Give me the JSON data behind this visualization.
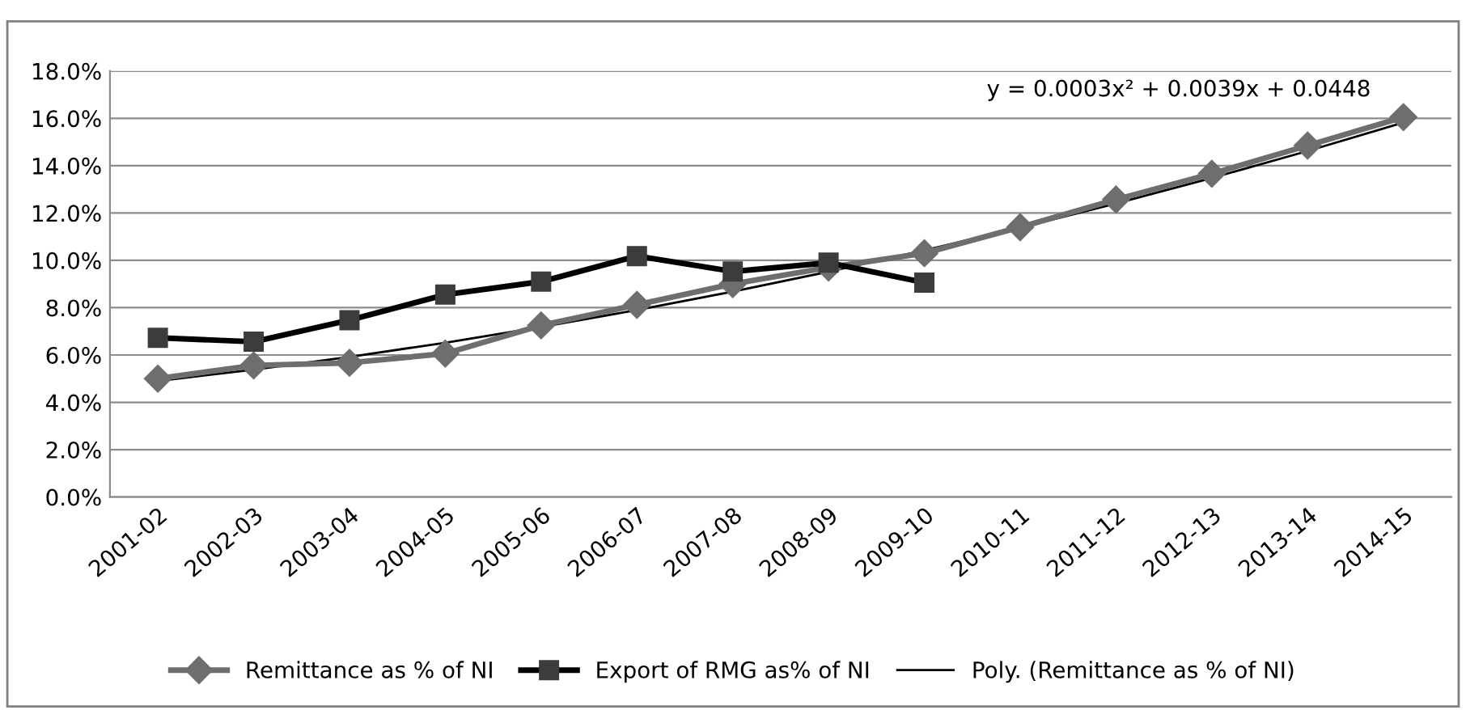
{
  "chart_data": {
    "type": "line",
    "categories": [
      "2001-02",
      "2002-03",
      "2003-04",
      "2004-05",
      "2005-06",
      "2006-07",
      "2007-08",
      "2008-09",
      "2009-10",
      "2010-11",
      "2011-12",
      "2012-13",
      "2013-14",
      "2014-15"
    ],
    "series": [
      {
        "name": "Remittance as % of NI",
        "color": "#6e6e6e",
        "marker": "diamond",
        "values": [
          5.0,
          5.56,
          5.67,
          6.06,
          7.25,
          8.12,
          9.0,
          9.7,
          10.3,
          11.4,
          12.57,
          13.66,
          14.85,
          16.05
        ]
      },
      {
        "name": "Export of RMG as% of NI",
        "color": "#000000",
        "marker": "square",
        "values": [
          6.73,
          6.56,
          7.47,
          8.55,
          9.1,
          10.18,
          9.53,
          9.9,
          9.06,
          null,
          null,
          null,
          null,
          null
        ]
      },
      {
        "name": "Poly. (Remittance as % of NI)",
        "color": "#000000",
        "marker": "none",
        "values": [
          4.9,
          5.38,
          5.92,
          6.52,
          7.18,
          7.9,
          8.68,
          9.52,
          10.42,
          11.38,
          12.4,
          13.48,
          14.62,
          15.82
        ]
      }
    ],
    "ylim": [
      0,
      18
    ],
    "yticks": [
      {
        "value": 0,
        "label": "0.0%"
      },
      {
        "value": 2,
        "label": "2.0%"
      },
      {
        "value": 4,
        "label": "4.0%"
      },
      {
        "value": 6,
        "label": "6.0%"
      },
      {
        "value": 8,
        "label": "8.0%"
      },
      {
        "value": 10,
        "label": "10.0%"
      },
      {
        "value": 12,
        "label": "12.0%"
      },
      {
        "value": 14,
        "label": "14.0%"
      },
      {
        "value": 16,
        "label": "16.0%"
      },
      {
        "value": 18,
        "label": "18.0%"
      }
    ],
    "grid": "y",
    "legend": "bottom",
    "annotations": [
      "y = 0.0003x² + 0.0039x + 0.0448"
    ]
  }
}
